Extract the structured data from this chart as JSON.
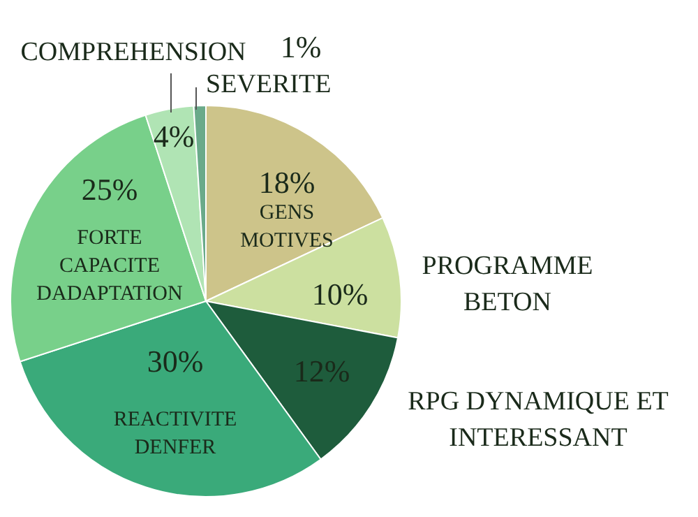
{
  "chart_data": {
    "type": "pie",
    "categories": [
      "GENS MOTIVES",
      "PROGRAMME BETON",
      "RPG DYNAMIQUE ET INTERESSANT",
      "REACTIVITE DENFER",
      "FORTE CAPACITE DADAPTATION",
      "COMPREHENSION",
      "SEVERITE"
    ],
    "values": [
      18,
      10,
      12,
      30,
      25,
      4,
      1
    ],
    "colors": [
      "#cdc48a",
      "#cce0a0",
      "#1e5c3c",
      "#3aaa7a",
      "#78d08a",
      "#b0e4b4",
      "#6aaa8a"
    ],
    "value_labels": [
      "18%",
      "10%",
      "12%",
      "30%",
      "25%",
      "4%",
      "1%"
    ]
  }
}
